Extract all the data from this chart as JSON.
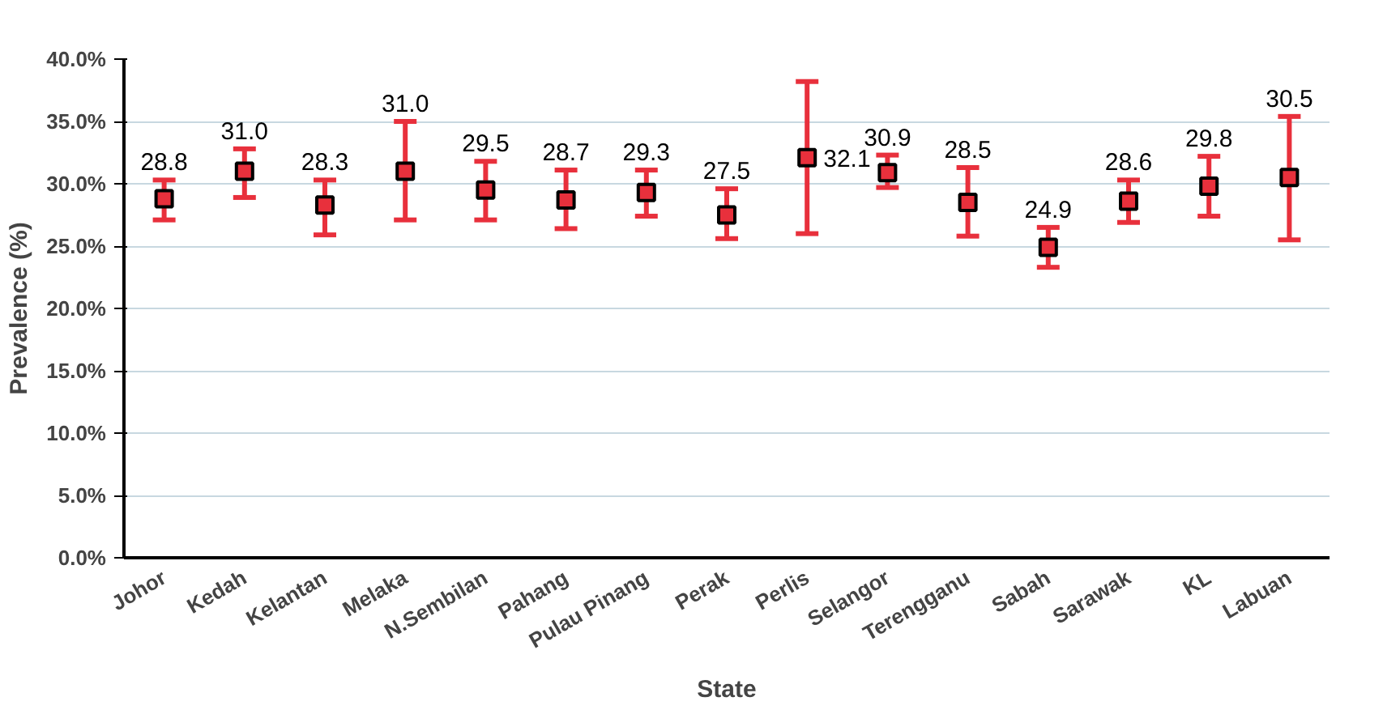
{
  "chart_data": {
    "type": "scatter",
    "xlabel": "State",
    "ylabel": "Prevalence (%)",
    "categories": [
      "Johor",
      "Kedah",
      "Kelantan",
      "Melaka",
      "N.Sembilan",
      "Pahang",
      "Pulau Pinang",
      "Perak",
      "Perlis",
      "Selangor",
      "Terengganu",
      "Sabah",
      "Sarawak",
      "KL",
      "Labuan"
    ],
    "series": [
      {
        "color": "#e8303c",
        "values": [
          28.8,
          31.0,
          28.3,
          31.0,
          29.5,
          28.7,
          29.3,
          27.5,
          32.1,
          30.9,
          28.5,
          24.9,
          28.6,
          29.8,
          30.5
        ],
        "value_labels": [
          "28.8",
          "31.0",
          "28.3",
          "31.0",
          "29.5",
          "28.7",
          "29.3",
          "27.5",
          "32.1",
          "30.9",
          "28.5",
          "24.9",
          "28.6",
          "29.8",
          "30.5"
        ],
        "errors": [
          [
            27.1,
            30.3
          ],
          [
            28.9,
            32.8
          ],
          [
            25.9,
            30.3
          ],
          [
            27.1,
            35.0
          ],
          [
            27.1,
            31.8
          ],
          [
            26.4,
            31.1
          ],
          [
            27.4,
            31.1
          ],
          [
            25.6,
            29.6
          ],
          [
            26.0,
            38.2
          ],
          [
            29.7,
            32.3
          ],
          [
            25.8,
            31.3
          ],
          [
            23.3,
            26.5
          ],
          [
            26.9,
            30.3
          ],
          [
            27.4,
            32.2
          ],
          [
            25.5,
            35.4
          ]
        ]
      }
    ],
    "marker": "square",
    "ylim": [
      0,
      40
    ],
    "yticks": [
      {
        "value": 0,
        "label": "0.0%"
      },
      {
        "value": 5,
        "label": "5.0%"
      },
      {
        "value": 10,
        "label": "10.0%"
      },
      {
        "value": 15,
        "label": "15.0%"
      },
      {
        "value": 20,
        "label": "20.0%"
      },
      {
        "value": 25,
        "label": "25.0%"
      },
      {
        "value": 30,
        "label": "30.0%"
      },
      {
        "value": 35,
        "label": "35.0%"
      },
      {
        "value": 40,
        "label": "40.0%"
      }
    ],
    "grid": "y"
  }
}
